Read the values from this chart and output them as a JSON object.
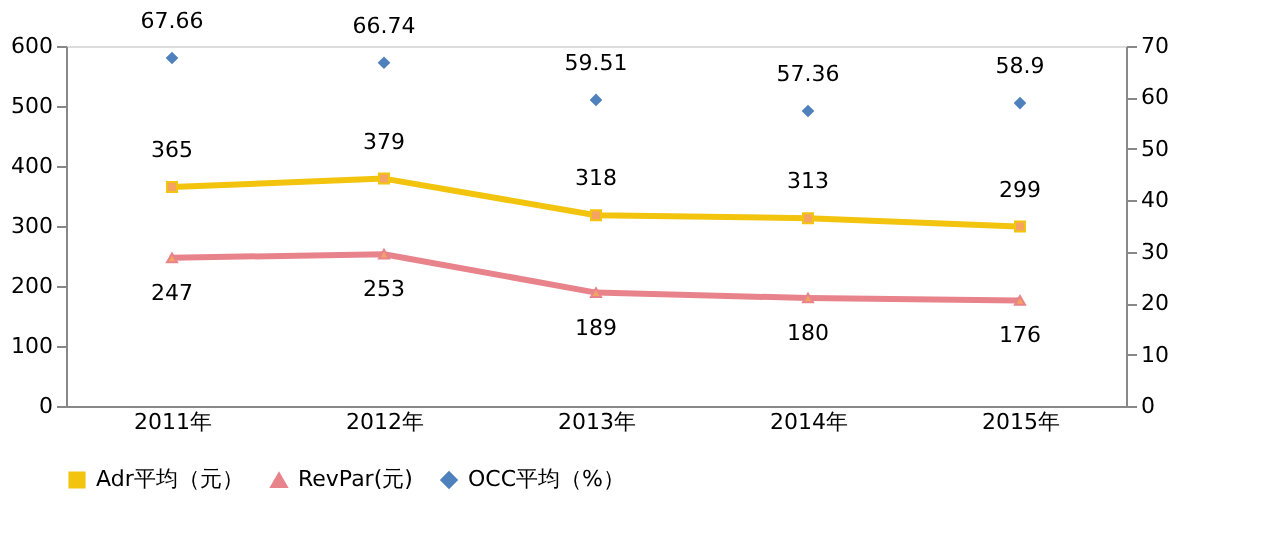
{
  "chart_data": {
    "type": "line",
    "categories": [
      "2011年",
      "2012年",
      "2013年",
      "2014年",
      "2015年"
    ],
    "series": [
      {
        "name": "Adr平均（元）",
        "color": "#f2c40e",
        "values": [
          365,
          379,
          318,
          313,
          299
        ],
        "marker": "square"
      },
      {
        "name": "RevPar(元)",
        "color": "#e8838b",
        "values": [
          247,
          253,
          189,
          180,
          176
        ],
        "marker": "triangle"
      },
      {
        "name": "OCC平均（%）",
        "type": "scatter",
        "axis": "y2",
        "color": "#4f81bd",
        "values": [
          67.66,
          66.74,
          59.51,
          57.36,
          58.9
        ],
        "marker": "diamond"
      }
    ],
    "ylim": [
      0,
      600
    ],
    "yticks": [
      0,
      100,
      200,
      300,
      400,
      500,
      600
    ],
    "y2lim": [
      0,
      70
    ],
    "y2ticks": [
      0,
      10,
      20,
      30,
      40,
      50,
      60,
      70
    ],
    "data_labels": true,
    "grid": false,
    "legend": "bottom"
  }
}
